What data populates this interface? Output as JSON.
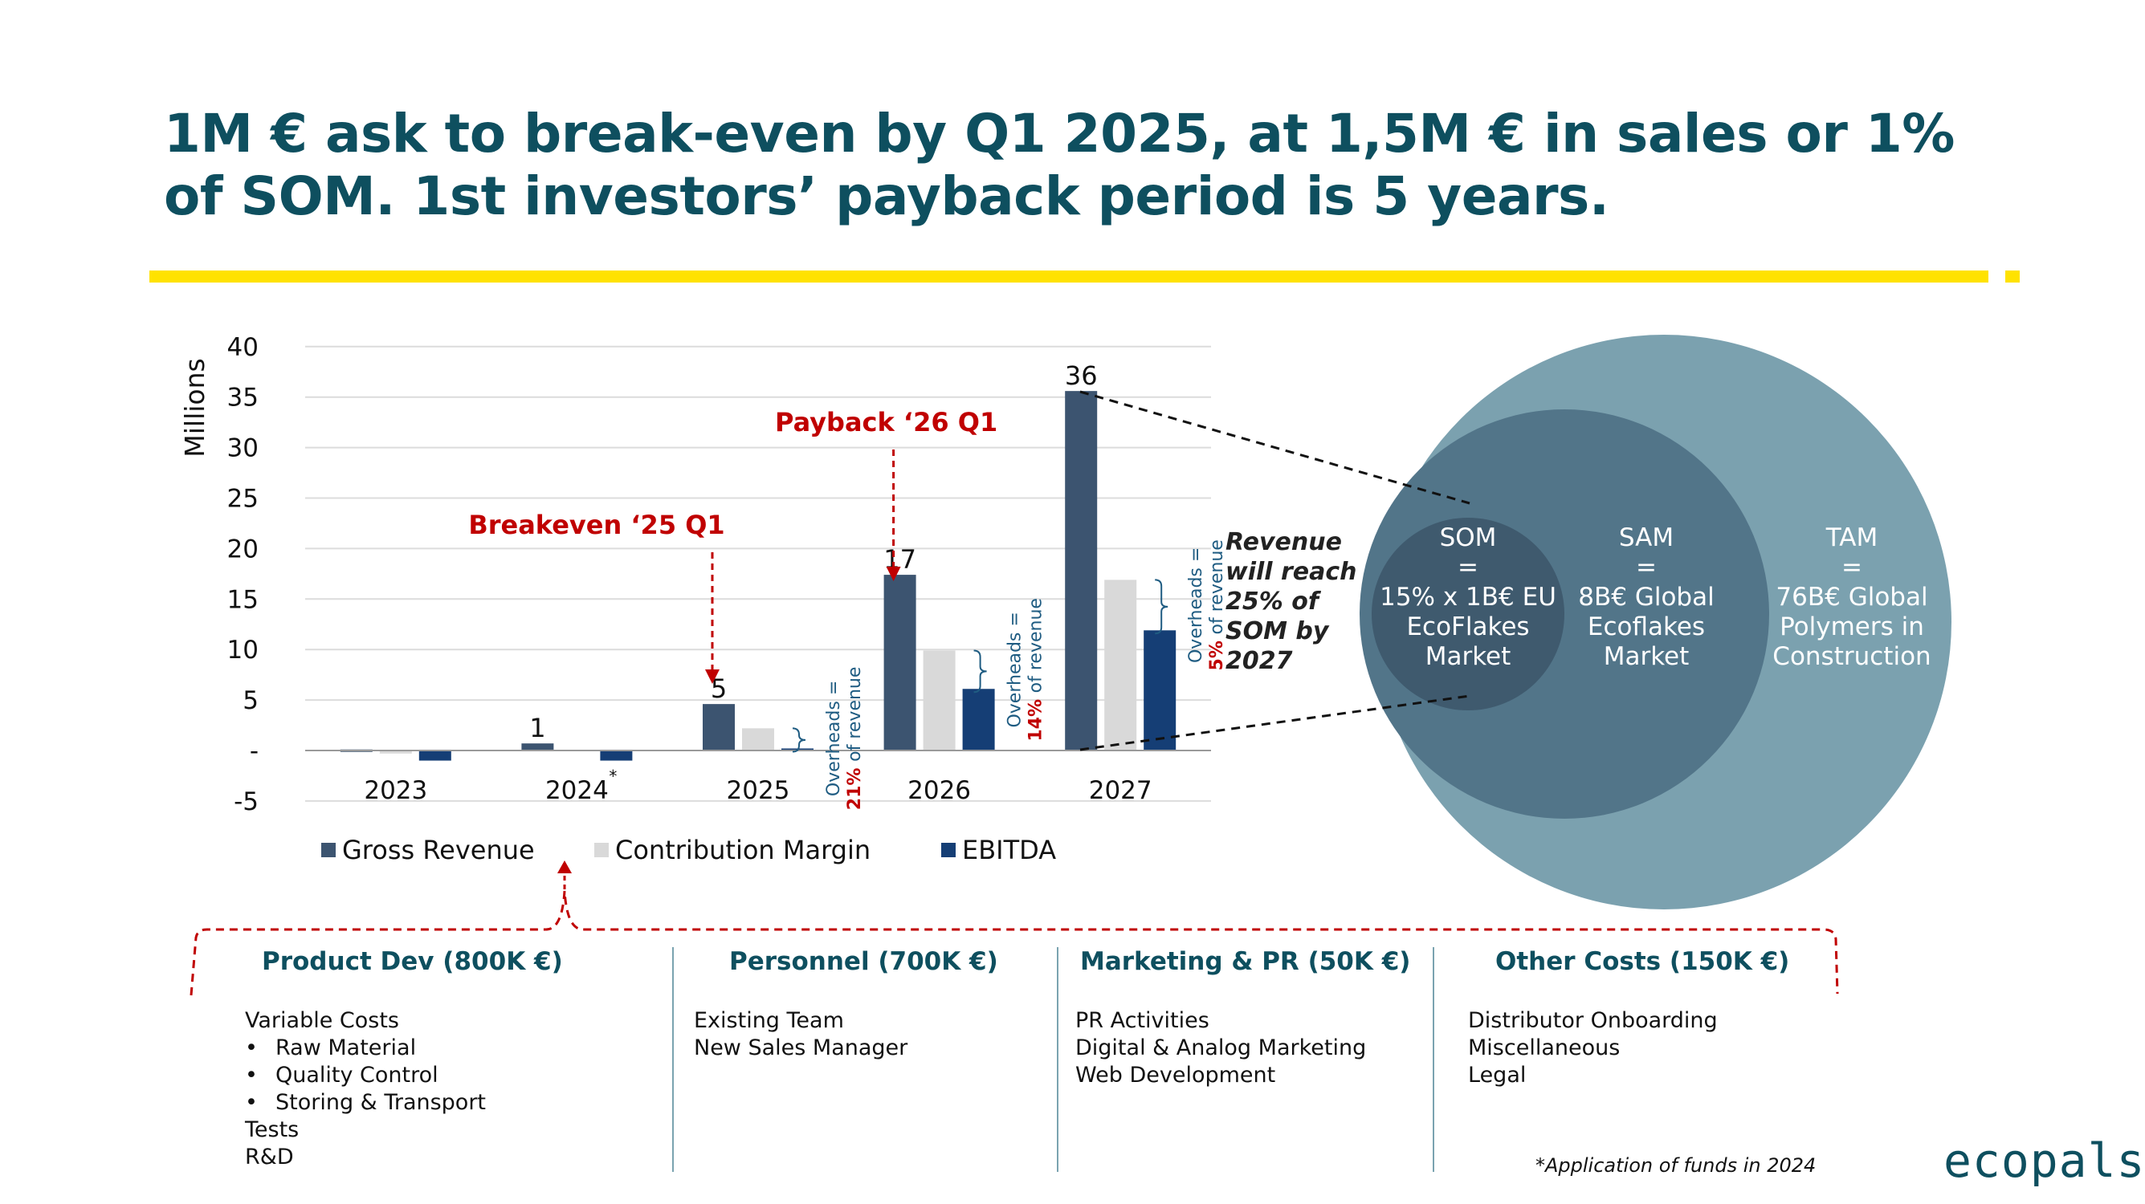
{
  "headline": {
    "line1": "1M € ask to break-even by Q1 2025, at 1,5M € in sales or 1%",
    "line2": "of SOM. 1st investors’ payback period is 5 years."
  },
  "colors": {
    "accent_yellow": "#ffe200",
    "teal_dark": "#0e4f5f",
    "red": "#c00000"
  },
  "chart_data": {
    "type": "bar",
    "ylabel": "Millions",
    "ylim": [
      -5,
      40
    ],
    "y_ticks": [
      -5,
      0,
      5,
      10,
      15,
      20,
      25,
      30,
      35,
      40
    ],
    "y_tick_labels": [
      "-5",
      "-",
      "5",
      "10",
      "15",
      "20",
      "25",
      "30",
      "35",
      "40"
    ],
    "grid": true,
    "categories": [
      "2023",
      "2024",
      "2025",
      "2026",
      "2027"
    ],
    "category_marker": "*",
    "series": [
      {
        "name": "Gross Revenue",
        "color": "#3c5470",
        "values": [
          0.1,
          0.7,
          4.6,
          17.4,
          35.6
        ]
      },
      {
        "name": "Contribution Margin",
        "color": "#d9d9d9",
        "values": [
          -0.3,
          0,
          2.2,
          9.9,
          16.9
        ]
      },
      {
        "name": "EBITDA",
        "color": "#153e75",
        "values": [
          -1.0,
          -1.0,
          0.2,
          6.1,
          11.9
        ]
      }
    ],
    "revenue_labels": [
      "",
      "1",
      "5",
      "17",
      "36"
    ],
    "overheads": [
      {
        "category": "2025",
        "line1": "Overheads =",
        "pct": "21%",
        "suffix": "of revenue"
      },
      {
        "category": "2026",
        "line1": "Overheads =",
        "pct": "14%",
        "suffix": "of revenue"
      },
      {
        "category": "2027",
        "line1": "Overheads =",
        "pct": "5%",
        "suffix": "of revenue"
      }
    ],
    "annotations": [
      {
        "text": "Breakeven ‘25 Q1",
        "category": "2025"
      },
      {
        "text": "Payback ‘26 Q1",
        "category": "2026"
      }
    ],
    "side_note": [
      "Revenue",
      "will reach",
      "25% of",
      "SOM by",
      "2027"
    ]
  },
  "venn": {
    "tam": [
      "TAM",
      "=",
      "76B€ Global",
      "Polymers in",
      "Construction"
    ],
    "sam": [
      "SAM",
      "=",
      "8B€ Global",
      "Ecoflakes",
      "Market"
    ],
    "som": [
      "SOM",
      "=",
      "15% x 1B€ EU",
      "EcoFlakes",
      "Market"
    ]
  },
  "funds": [
    {
      "title": "Product Dev (800K €)",
      "items": [
        {
          "text": "Variable Costs",
          "bullet": false
        },
        {
          "text": "Raw Material",
          "bullet": true
        },
        {
          "text": "Quality Control",
          "bullet": true
        },
        {
          "text": "Storing & Transport",
          "bullet": true
        },
        {
          "text": "Tests",
          "bullet": false
        },
        {
          "text": "R&D",
          "bullet": false
        }
      ]
    },
    {
      "title": "Personnel (700K €)",
      "items": [
        {
          "text": "Existing Team",
          "bullet": false
        },
        {
          "text": "New Sales Manager",
          "bullet": false
        }
      ]
    },
    {
      "title": "Marketing & PR (50K €)",
      "items": [
        {
          "text": "PR Activities",
          "bullet": false
        },
        {
          "text": "Digital & Analog Marketing",
          "bullet": false
        },
        {
          "text": "Web Development",
          "bullet": false
        }
      ]
    },
    {
      "title": "Other Costs (150K €)",
      "items": [
        {
          "text": "Distributor Onboarding",
          "bullet": false
        },
        {
          "text": "Miscellaneous",
          "bullet": false
        },
        {
          "text": "Legal",
          "bullet": false
        }
      ]
    }
  ],
  "footnote": "*Application of funds in 2024",
  "logo": "ecopals"
}
